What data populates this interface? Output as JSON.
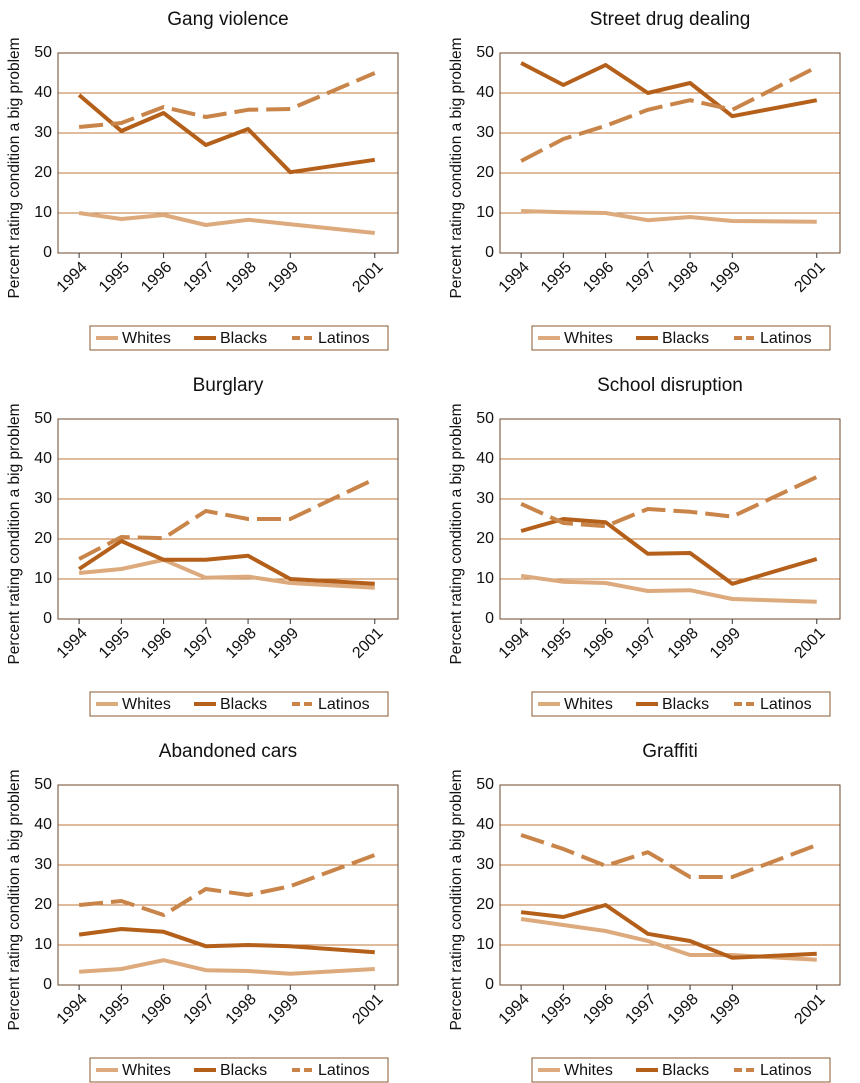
{
  "chart_data": [
    {
      "type": "line",
      "title": "Gang violence",
      "ylabel": "Percent rating condition a big problem",
      "x": [
        1994,
        1995,
        1996,
        1997,
        1998,
        1999,
        2001
      ],
      "xticks": [
        1994,
        1995,
        1996,
        1997,
        1998,
        1999,
        2001
      ],
      "xlim": [
        1993.5,
        2001.55
      ],
      "ylim": [
        0,
        50
      ],
      "yticks": [
        0,
        10,
        20,
        30,
        40,
        50
      ],
      "grid": true,
      "series": [
        {
          "name": "Whites",
          "color": "#dcaa7c",
          "dashed": false,
          "values": [
            10,
            8.5,
            9.5,
            7,
            8.3,
            7.2,
            5
          ]
        },
        {
          "name": "Blacks",
          "color": "#b4601a",
          "dashed": false,
          "values": [
            39.5,
            30.5,
            35,
            27,
            31,
            20.2,
            23.3
          ]
        },
        {
          "name": "Latinos",
          "color": "#c98549",
          "dashed": true,
          "values": [
            31.5,
            32.5,
            36.5,
            34,
            35.8,
            36,
            45
          ]
        }
      ]
    },
    {
      "type": "line",
      "title": "Street drug dealing",
      "ylabel": "Percent rating condition a big problem",
      "x": [
        1994,
        1995,
        1996,
        1997,
        1998,
        1999,
        2001
      ],
      "xticks": [
        1994,
        1995,
        1996,
        1997,
        1998,
        1999,
        2001
      ],
      "xlim": [
        1993.5,
        2001.55
      ],
      "ylim": [
        0,
        50
      ],
      "yticks": [
        0,
        10,
        20,
        30,
        40,
        50
      ],
      "grid": true,
      "series": [
        {
          "name": "Whites",
          "color": "#dcaa7c",
          "dashed": false,
          "values": [
            10.5,
            10.2,
            10,
            8.2,
            9,
            8,
            7.8
          ]
        },
        {
          "name": "Blacks",
          "color": "#b4601a",
          "dashed": false,
          "values": [
            47.5,
            42,
            47,
            40,
            42.5,
            34.2,
            38.2
          ]
        },
        {
          "name": "Latinos",
          "color": "#c98549",
          "dashed": true,
          "values": [
            23,
            28.5,
            31.8,
            35.8,
            38.2,
            35.8,
            46.5
          ]
        }
      ]
    },
    {
      "type": "line",
      "title": "Burglary",
      "ylabel": "Percent rating condition a big problem",
      "x": [
        1994,
        1995,
        1996,
        1997,
        1998,
        1999,
        2001
      ],
      "xticks": [
        1994,
        1995,
        1996,
        1997,
        1998,
        1999,
        2001
      ],
      "xlim": [
        1993.5,
        2001.55
      ],
      "ylim": [
        0,
        50
      ],
      "yticks": [
        0,
        10,
        20,
        30,
        40,
        50
      ],
      "grid": true,
      "series": [
        {
          "name": "Whites",
          "color": "#dcaa7c",
          "dashed": false,
          "values": [
            11.5,
            12.5,
            14.8,
            10.3,
            10.6,
            9,
            7.8
          ]
        },
        {
          "name": "Blacks",
          "color": "#b4601a",
          "dashed": false,
          "values": [
            12.5,
            19.5,
            14.8,
            14.8,
            15.8,
            10,
            8.8
          ]
        },
        {
          "name": "Latinos",
          "color": "#c98549",
          "dashed": true,
          "values": [
            15,
            20.5,
            20.2,
            27,
            25,
            25,
            35
          ]
        }
      ]
    },
    {
      "type": "line",
      "title": "School disruption",
      "ylabel": "Percent rating condition a big problem",
      "x": [
        1994,
        1995,
        1996,
        1997,
        1998,
        1999,
        2001
      ],
      "xticks": [
        1994,
        1995,
        1996,
        1997,
        1998,
        1999,
        2001
      ],
      "xlim": [
        1993.5,
        2001.55
      ],
      "ylim": [
        0,
        50
      ],
      "yticks": [
        0,
        10,
        20,
        30,
        40,
        50
      ],
      "grid": true,
      "series": [
        {
          "name": "Whites",
          "color": "#dcaa7c",
          "dashed": false,
          "values": [
            10.8,
            9.3,
            9,
            7,
            7.2,
            5,
            4.3
          ]
        },
        {
          "name": "Blacks",
          "color": "#b4601a",
          "dashed": false,
          "values": [
            22,
            25,
            24.2,
            16.3,
            16.5,
            8.8,
            15
          ]
        },
        {
          "name": "Latinos",
          "color": "#c98549",
          "dashed": true,
          "values": [
            28.8,
            24,
            23.2,
            27.5,
            26.8,
            25.6,
            35.5
          ]
        }
      ]
    },
    {
      "type": "line",
      "title": "Abandoned cars",
      "ylabel": "Percent rating condition a big problem",
      "x": [
        1994,
        1995,
        1996,
        1997,
        1998,
        1999,
        2001
      ],
      "xticks": [
        1994,
        1995,
        1996,
        1997,
        1998,
        1999,
        2001
      ],
      "xlim": [
        1993.5,
        2001.55
      ],
      "ylim": [
        0,
        50
      ],
      "yticks": [
        0,
        10,
        20,
        30,
        40,
        50
      ],
      "grid": true,
      "series": [
        {
          "name": "Whites",
          "color": "#dcaa7c",
          "dashed": false,
          "values": [
            3.3,
            4,
            6.2,
            3.7,
            3.5,
            2.8,
            4
          ]
        },
        {
          "name": "Blacks",
          "color": "#b4601a",
          "dashed": false,
          "values": [
            12.6,
            14,
            13.3,
            9.7,
            10,
            9.7,
            8.2
          ]
        },
        {
          "name": "Latinos",
          "color": "#c98549",
          "dashed": true,
          "values": [
            20,
            21,
            17.5,
            24,
            22.5,
            24.7,
            32.5
          ]
        }
      ]
    },
    {
      "type": "line",
      "title": "Graffiti",
      "ylabel": "Percent rating condition a big problem",
      "x": [
        1994,
        1995,
        1996,
        1997,
        1998,
        1999,
        2001
      ],
      "xticks": [
        1994,
        1995,
        1996,
        1997,
        1998,
        1999,
        2001
      ],
      "xlim": [
        1993.5,
        2001.55
      ],
      "ylim": [
        0,
        50
      ],
      "yticks": [
        0,
        10,
        20,
        30,
        40,
        50
      ],
      "grid": true,
      "series": [
        {
          "name": "Whites",
          "color": "#dcaa7c",
          "dashed": false,
          "values": [
            16.5,
            15,
            13.5,
            11,
            7.5,
            7.5,
            6.3
          ]
        },
        {
          "name": "Blacks",
          "color": "#b4601a",
          "dashed": false,
          "values": [
            18.2,
            17,
            20,
            12.8,
            11,
            6.8,
            7.8
          ]
        },
        {
          "name": "Latinos",
          "color": "#c98549",
          "dashed": true,
          "values": [
            37.5,
            34,
            29.8,
            33.2,
            27,
            27,
            35
          ]
        }
      ]
    }
  ]
}
